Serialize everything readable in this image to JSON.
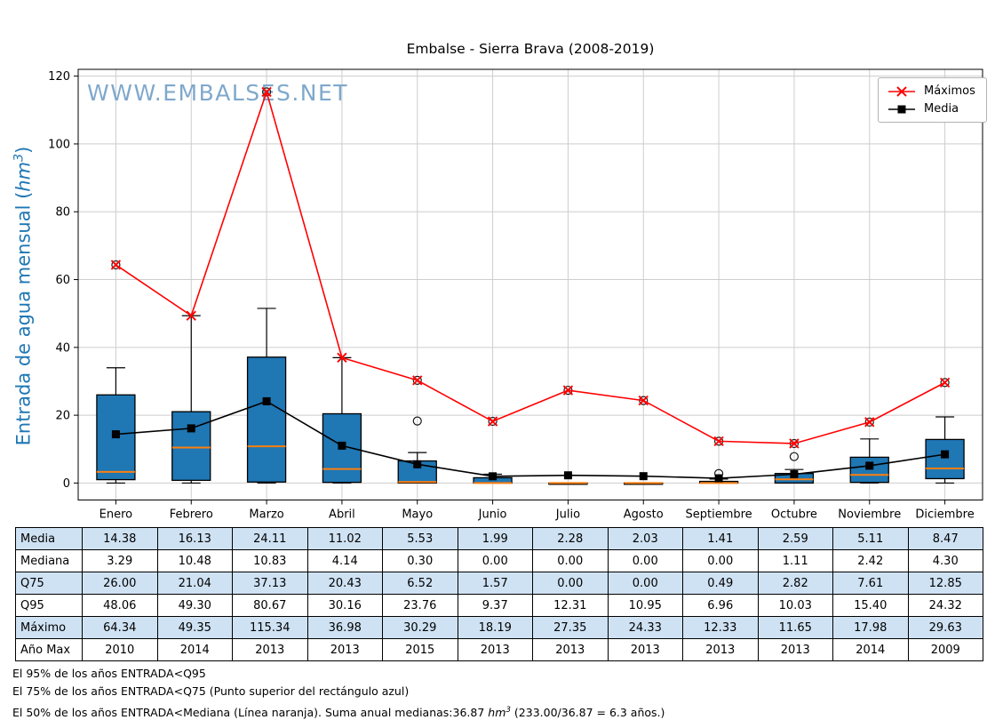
{
  "chart_data": {
    "type": "boxplot",
    "title": "Embalse - Sierra Brava (2008-2019)",
    "watermark": "WWW.EMBALSES.NET",
    "ylabel": {
      "prefix": "Entrada de agua mensual (",
      "unit": "hm",
      "sup": "3",
      "suffix": ")"
    },
    "ylim": [
      -5,
      122
    ],
    "yticks": [
      0,
      20,
      40,
      60,
      80,
      100,
      120
    ],
    "grid": true,
    "legend_position": "upper-right",
    "months": [
      "Enero",
      "Febrero",
      "Marzo",
      "Abril",
      "Mayo",
      "Junio",
      "Julio",
      "Agosto",
      "Septiembre",
      "Octubre",
      "Noviembre",
      "Diciembre"
    ],
    "series": [
      {
        "name": "Máximos",
        "marker": "x",
        "color": "#ff0000",
        "values": [
          64.34,
          49.35,
          115.34,
          36.98,
          30.29,
          18.19,
          27.35,
          24.33,
          12.33,
          11.65,
          17.98,
          29.63
        ]
      },
      {
        "name": "Media",
        "marker": "square",
        "color": "#000000",
        "values": [
          14.38,
          16.13,
          24.11,
          11.02,
          5.53,
          1.99,
          2.28,
          2.03,
          1.41,
          2.59,
          5.11,
          8.47
        ]
      }
    ],
    "boxes": [
      {
        "q1": 1.0,
        "med": 3.29,
        "q3": 26.0,
        "lo": 0,
        "hi": 34.0,
        "outliers": [
          64.34
        ]
      },
      {
        "q1": 0.8,
        "med": 10.48,
        "q3": 21.04,
        "lo": 0,
        "hi": 49.35,
        "outliers": []
      },
      {
        "q1": 0.3,
        "med": 10.83,
        "q3": 37.13,
        "lo": 0,
        "hi": 51.5,
        "outliers": [
          115.34
        ]
      },
      {
        "q1": 0.2,
        "med": 4.14,
        "q3": 20.43,
        "lo": 0,
        "hi": 36.98,
        "outliers": []
      },
      {
        "q1": 0.0,
        "med": 0.3,
        "q3": 6.52,
        "lo": 0,
        "hi": 9.0,
        "outliers": [
          18.3,
          30.29
        ]
      },
      {
        "q1": 0.0,
        "med": 0.0,
        "q3": 1.57,
        "lo": 0,
        "hi": 2.6,
        "outliers": [
          18.19
        ]
      },
      {
        "q1": 0.0,
        "med": 0.0,
        "q3": 0.0,
        "lo": 0,
        "hi": 0.0,
        "outliers": [
          27.35
        ]
      },
      {
        "q1": 0.0,
        "med": 0.0,
        "q3": 0.0,
        "lo": 0,
        "hi": 0.0,
        "outliers": [
          24.33
        ]
      },
      {
        "q1": 0.0,
        "med": 0.0,
        "q3": 0.49,
        "lo": 0,
        "hi": 1.2,
        "outliers": [
          2.8,
          12.33
        ]
      },
      {
        "q1": 0.0,
        "med": 1.11,
        "q3": 2.82,
        "lo": 0,
        "hi": 4.0,
        "outliers": [
          7.8,
          11.65
        ]
      },
      {
        "q1": 0.2,
        "med": 2.42,
        "q3": 7.61,
        "lo": 0,
        "hi": 13.0,
        "outliers": [
          17.98
        ]
      },
      {
        "q1": 1.3,
        "med": 4.3,
        "q3": 12.85,
        "lo": 0,
        "hi": 19.5,
        "outliers": [
          29.63
        ]
      }
    ],
    "colors": {
      "box_fill": "#1f77b4",
      "box_edge": "#000000",
      "median": "#ff7f0e",
      "grid": "#cdcdcd",
      "frame": "#000000",
      "maximos": "#ff0000",
      "media": "#000000",
      "ylabel": "#1f77b4",
      "watermark": "#7fa8cc",
      "table_highlight": "#cfe2f3"
    }
  },
  "table": {
    "rows": [
      {
        "label": "Media",
        "highlight": true,
        "values": [
          "14.38",
          "16.13",
          "24.11",
          "11.02",
          "5.53",
          "1.99",
          "2.28",
          "2.03",
          "1.41",
          "2.59",
          "5.11",
          "8.47"
        ]
      },
      {
        "label": "Mediana",
        "highlight": false,
        "values": [
          "3.29",
          "10.48",
          "10.83",
          "4.14",
          "0.30",
          "0.00",
          "0.00",
          "0.00",
          "0.00",
          "1.11",
          "2.42",
          "4.30"
        ]
      },
      {
        "label": "Q75",
        "highlight": true,
        "values": [
          "26.00",
          "21.04",
          "37.13",
          "20.43",
          "6.52",
          "1.57",
          "0.00",
          "0.00",
          "0.49",
          "2.82",
          "7.61",
          "12.85"
        ]
      },
      {
        "label": "Q95",
        "highlight": false,
        "values": [
          "48.06",
          "49.30",
          "80.67",
          "30.16",
          "23.76",
          "9.37",
          "12.31",
          "10.95",
          "6.96",
          "10.03",
          "15.40",
          "24.32"
        ]
      },
      {
        "label": "Máximo",
        "highlight": true,
        "values": [
          "64.34",
          "49.35",
          "115.34",
          "36.98",
          "30.29",
          "18.19",
          "27.35",
          "24.33",
          "12.33",
          "11.65",
          "17.98",
          "29.63"
        ]
      },
      {
        "label": "Año Max",
        "highlight": false,
        "values": [
          "2010",
          "2014",
          "2013",
          "2013",
          "2015",
          "2013",
          "2013",
          "2013",
          "2013",
          "2013",
          "2014",
          "2009"
        ]
      }
    ]
  },
  "notes": {
    "line1": "El 95% de los años ENTRADA<Q95",
    "line2": "El 75% de los años ENTRADA<Q75 (Punto superior del rectángulo azul)",
    "line3": {
      "prefix": "El 50% de los años ENTRADA<Mediana (Línea naranja). Suma anual medianas:36.87 ",
      "unit": "hm",
      "sup": "3",
      "suffix": " (233.00/36.87 = 6.3 años.)"
    }
  }
}
